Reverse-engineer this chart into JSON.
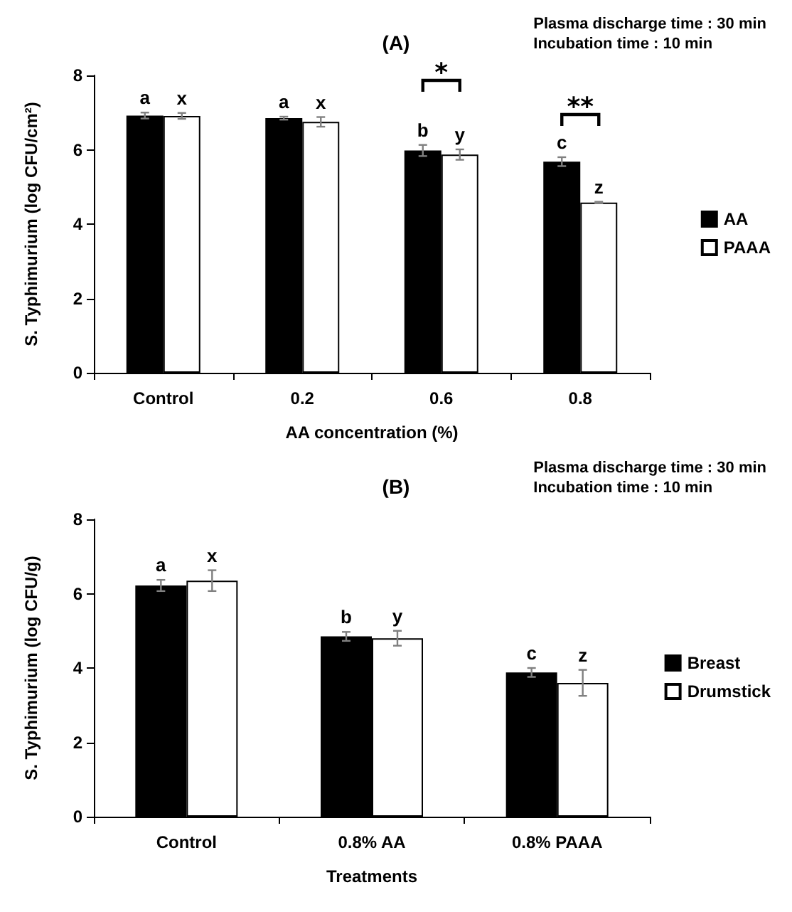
{
  "chart_data": [
    {
      "type": "bar",
      "title": "(A)",
      "subtitle": "Plasma discharge time : 30 min\nIncubation time : 10 min",
      "xlabel": "AA concentration (%)",
      "ylabel": "S. Typhimurium (log CFU/cm²)",
      "categories": [
        "Control",
        "0.2",
        "0.6",
        "0.8"
      ],
      "series": [
        {
          "name": "AA",
          "color": "#000000",
          "values": [
            6.92,
            6.85,
            5.98,
            5.68
          ],
          "errors": [
            0.08,
            0.04,
            0.15,
            0.12
          ],
          "value_labels": [
            "a",
            "a",
            "b",
            "c"
          ]
        },
        {
          "name": "PAAA",
          "color": "#ffffff",
          "values": [
            6.91,
            6.75,
            5.87,
            4.58
          ],
          "errors": [
            0.08,
            0.13,
            0.14,
            0.02
          ],
          "value_labels": [
            "x",
            "x",
            "y",
            "z"
          ]
        }
      ],
      "ylim": [
        0,
        8
      ],
      "yticks": [
        0,
        2,
        4,
        6,
        8
      ],
      "grid": false,
      "legend": "right",
      "annotations": [
        "*",
        "**"
      ]
    },
    {
      "type": "bar",
      "title": "(B)",
      "subtitle": "Plasma discharge time : 30 min\nIncubation time : 10 min",
      "xlabel": "Treatments",
      "ylabel": "S. Typhimurium (log CFU/g)",
      "categories": [
        "Control",
        "0.8% AA",
        "0.8% PAAA"
      ],
      "series": [
        {
          "name": "Breast",
          "color": "#000000",
          "values": [
            6.22,
            4.85,
            3.88
          ],
          "errors": [
            0.15,
            0.12,
            0.12
          ],
          "value_labels": [
            "a",
            "b",
            "c"
          ]
        },
        {
          "name": "Drumstick",
          "color": "#ffffff",
          "values": [
            6.35,
            4.8,
            3.6
          ],
          "errors": [
            0.28,
            0.2,
            0.35
          ],
          "value_labels": [
            "x",
            "y",
            "z"
          ]
        }
      ],
      "ylim": [
        0,
        8
      ],
      "yticks": [
        0,
        2,
        4,
        6,
        8
      ],
      "grid": false,
      "legend": "right"
    }
  ]
}
